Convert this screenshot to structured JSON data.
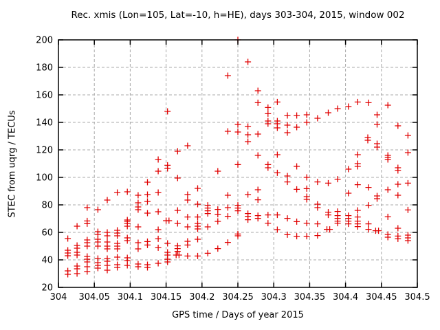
{
  "chart_data": {
    "type": "scatter",
    "title": "Rec. xmis (Lon=105, Lat=-10, h=HE), days 303-304, 2015, window 002",
    "xlabel": "GPS time / Days of year 2015",
    "ylabel": "STEC from uqrg / TECUs",
    "xlim": [
      304,
      304.5
    ],
    "ylim": [
      20,
      200
    ],
    "xticks": [
      {
        "v": 304.0,
        "label": "304"
      },
      {
        "v": 304.05,
        "label": "304.05"
      },
      {
        "v": 304.1,
        "label": "304.1"
      },
      {
        "v": 304.15,
        "label": "304.15"
      },
      {
        "v": 304.2,
        "label": "304.2"
      },
      {
        "v": 304.25,
        "label": "304.25"
      },
      {
        "v": 304.3,
        "label": "304.3"
      },
      {
        "v": 304.35,
        "label": "304.35"
      },
      {
        "v": 304.4,
        "label": "304.4"
      },
      {
        "v": 304.45,
        "label": "304.45"
      },
      {
        "v": 304.5,
        "label": "304.5"
      }
    ],
    "yticks": [
      {
        "v": 20,
        "label": "20"
      },
      {
        "v": 40,
        "label": "40"
      },
      {
        "v": 60,
        "label": "60"
      },
      {
        "v": 80,
        "label": "80"
      },
      {
        "v": 100,
        "label": "100"
      },
      {
        "v": 120,
        "label": "120"
      },
      {
        "v": 140,
        "label": "140"
      },
      {
        "v": 160,
        "label": "160"
      },
      {
        "v": 180,
        "label": "180"
      },
      {
        "v": 200,
        "label": "200"
      }
    ],
    "grid": true,
    "legend": "none",
    "marker": "plus",
    "marker_color": "#e00000",
    "grid_color": "#a8a8a8",
    "border_color": "#000000",
    "series": [
      {
        "name": "STEC from uqrg",
        "points": [
          [
            304.013,
            55.5
          ],
          [
            304.013,
            47
          ],
          [
            304.013,
            45
          ],
          [
            304.013,
            43
          ],
          [
            304.013,
            32
          ],
          [
            304.013,
            29.5
          ],
          [
            304.026,
            64.5
          ],
          [
            304.026,
            50.5
          ],
          [
            304.026,
            48.5
          ],
          [
            304.026,
            45.5
          ],
          [
            304.026,
            43.5
          ],
          [
            304.026,
            35.5
          ],
          [
            304.026,
            33.5
          ],
          [
            304.026,
            30
          ],
          [
            304.04,
            78
          ],
          [
            304.04,
            68.3
          ],
          [
            304.04,
            66.3
          ],
          [
            304.04,
            54.5
          ],
          [
            304.04,
            52.5
          ],
          [
            304.04,
            50
          ],
          [
            304.04,
            42.5
          ],
          [
            304.04,
            40.5
          ],
          [
            304.04,
            38.5
          ],
          [
            304.04,
            35
          ],
          [
            304.04,
            31.5
          ],
          [
            304.055,
            76.5
          ],
          [
            304.055,
            60.5
          ],
          [
            304.055,
            58.5
          ],
          [
            304.055,
            55
          ],
          [
            304.055,
            53
          ],
          [
            304.055,
            50
          ],
          [
            304.055,
            41
          ],
          [
            304.055,
            38
          ],
          [
            304.055,
            36
          ],
          [
            304.055,
            34
          ],
          [
            304.068,
            83.5
          ],
          [
            304.068,
            60
          ],
          [
            304.068,
            57.5
          ],
          [
            304.068,
            53
          ],
          [
            304.068,
            50
          ],
          [
            304.068,
            48
          ],
          [
            304.068,
            41
          ],
          [
            304.068,
            39
          ],
          [
            304.068,
            36
          ],
          [
            304.068,
            32.5
          ],
          [
            304.082,
            89
          ],
          [
            304.082,
            61.5
          ],
          [
            304.082,
            59.5
          ],
          [
            304.082,
            57.5
          ],
          [
            304.082,
            52
          ],
          [
            304.082,
            50
          ],
          [
            304.082,
            48
          ],
          [
            304.082,
            42
          ],
          [
            304.082,
            36.5
          ],
          [
            304.082,
            34.5
          ],
          [
            304.096,
            89.5
          ],
          [
            304.096,
            69
          ],
          [
            304.096,
            68
          ],
          [
            304.096,
            66.5
          ],
          [
            304.096,
            64.5
          ],
          [
            304.096,
            56
          ],
          [
            304.096,
            54
          ],
          [
            304.096,
            41.5
          ],
          [
            304.096,
            39.5
          ],
          [
            304.096,
            36
          ],
          [
            304.111,
            87
          ],
          [
            304.111,
            81.5
          ],
          [
            304.111,
            78.5
          ],
          [
            304.111,
            76.5
          ],
          [
            304.111,
            64
          ],
          [
            304.111,
            52.5
          ],
          [
            304.111,
            48
          ],
          [
            304.111,
            37
          ],
          [
            304.111,
            35
          ],
          [
            304.124,
            96.5
          ],
          [
            304.124,
            87.5
          ],
          [
            304.124,
            82.5
          ],
          [
            304.124,
            74
          ],
          [
            304.124,
            53.3
          ],
          [
            304.124,
            50.8
          ],
          [
            304.124,
            36.5
          ],
          [
            304.124,
            34.5
          ],
          [
            304.139,
            113
          ],
          [
            304.139,
            104.5
          ],
          [
            304.139,
            89
          ],
          [
            304.139,
            75
          ],
          [
            304.139,
            62
          ],
          [
            304.139,
            55.3
          ],
          [
            304.139,
            48.8
          ],
          [
            304.139,
            37.5
          ],
          [
            304.152,
            148
          ],
          [
            304.152,
            108.8
          ],
          [
            304.152,
            106.5
          ],
          [
            304.15,
            68.5
          ],
          [
            304.154,
            68.5
          ],
          [
            304.152,
            52
          ],
          [
            304.152,
            45.5
          ],
          [
            304.152,
            43.5
          ],
          [
            304.152,
            40.5
          ],
          [
            304.152,
            38.5
          ],
          [
            304.166,
            119
          ],
          [
            304.166,
            99.5
          ],
          [
            304.166,
            76
          ],
          [
            304.166,
            66.5
          ],
          [
            304.166,
            50.2
          ],
          [
            304.166,
            48.2
          ],
          [
            304.166,
            46.2
          ],
          [
            304.164,
            43.5
          ],
          [
            304.168,
            43.5
          ],
          [
            304.18,
            123
          ],
          [
            304.18,
            87.5
          ],
          [
            304.18,
            83.5
          ],
          [
            304.18,
            71.2
          ],
          [
            304.18,
            64
          ],
          [
            304.18,
            53.5
          ],
          [
            304.18,
            50.8
          ],
          [
            304.18,
            42.8
          ],
          [
            304.194,
            92
          ],
          [
            304.194,
            80.5
          ],
          [
            304.194,
            71.2
          ],
          [
            304.194,
            66.5
          ],
          [
            304.194,
            64.5
          ],
          [
            304.194,
            62.5
          ],
          [
            304.194,
            55
          ],
          [
            304.194,
            42.8
          ],
          [
            304.208,
            79.7
          ],
          [
            304.208,
            77.7
          ],
          [
            304.208,
            75.7
          ],
          [
            304.208,
            73.7
          ],
          [
            304.208,
            64
          ],
          [
            304.208,
            44.8
          ],
          [
            304.222,
            104.5
          ],
          [
            304.222,
            76.7
          ],
          [
            304.222,
            73.2
          ],
          [
            304.222,
            68
          ],
          [
            304.222,
            48.2
          ],
          [
            304.236,
            174
          ],
          [
            304.236,
            133.5
          ],
          [
            304.236,
            87
          ],
          [
            304.236,
            78
          ],
          [
            304.236,
            71.7
          ],
          [
            304.236,
            52.7
          ],
          [
            304.25,
            200
          ],
          [
            304.25,
            138.5
          ],
          [
            304.25,
            133
          ],
          [
            304.25,
            109.3
          ],
          [
            304.25,
            79.7
          ],
          [
            304.25,
            77.7
          ],
          [
            304.25,
            75.7
          ],
          [
            304.25,
            58.8
          ],
          [
            304.25,
            57.5
          ],
          [
            304.264,
            184
          ],
          [
            304.264,
            137
          ],
          [
            304.264,
            131
          ],
          [
            304.264,
            126
          ],
          [
            304.264,
            87.5
          ],
          [
            304.264,
            73.7
          ],
          [
            304.264,
            71.7
          ],
          [
            304.264,
            69.2
          ],
          [
            304.278,
            163
          ],
          [
            304.278,
            154.3
          ],
          [
            304.278,
            131.5
          ],
          [
            304.278,
            116
          ],
          [
            304.278,
            91
          ],
          [
            304.278,
            83.7
          ],
          [
            304.278,
            72.2
          ],
          [
            304.278,
            70.2
          ],
          [
            304.292,
            150.8
          ],
          [
            304.292,
            146.3
          ],
          [
            304.292,
            141
          ],
          [
            304.292,
            139
          ],
          [
            304.292,
            109.3
          ],
          [
            304.292,
            107
          ],
          [
            304.292,
            72.7
          ],
          [
            304.292,
            66.7
          ],
          [
            304.305,
            154.8
          ],
          [
            304.305,
            141
          ],
          [
            304.305,
            139
          ],
          [
            304.305,
            136
          ],
          [
            304.305,
            116.5
          ],
          [
            304.305,
            103.3
          ],
          [
            304.305,
            72.7
          ],
          [
            304.305,
            62
          ],
          [
            304.319,
            145
          ],
          [
            304.319,
            138
          ],
          [
            304.319,
            132.5
          ],
          [
            304.319,
            101
          ],
          [
            304.319,
            96.7
          ],
          [
            304.319,
            70.2
          ],
          [
            304.319,
            58.3
          ],
          [
            304.332,
            145
          ],
          [
            304.332,
            136.5
          ],
          [
            304.332,
            108
          ],
          [
            304.332,
            91.3
          ],
          [
            304.332,
            67.8
          ],
          [
            304.332,
            57.2
          ],
          [
            304.346,
            145.5
          ],
          [
            304.346,
            140
          ],
          [
            304.346,
            100
          ],
          [
            304.346,
            91.8
          ],
          [
            304.346,
            86
          ],
          [
            304.346,
            84
          ],
          [
            304.346,
            66.7
          ],
          [
            304.346,
            57.2
          ],
          [
            304.361,
            143
          ],
          [
            304.361,
            96.7
          ],
          [
            304.361,
            80.5
          ],
          [
            304.361,
            78
          ],
          [
            304.361,
            66.2
          ],
          [
            304.361,
            57.7
          ],
          [
            304.376,
            147
          ],
          [
            304.376,
            95.8
          ],
          [
            304.376,
            74.7
          ],
          [
            304.376,
            72.7
          ],
          [
            304.374,
            62.2
          ],
          [
            304.378,
            62.2
          ],
          [
            304.389,
            150
          ],
          [
            304.389,
            98.7
          ],
          [
            304.389,
            75.2
          ],
          [
            304.389,
            72.2
          ],
          [
            304.389,
            70.2
          ],
          [
            304.389,
            68.2
          ],
          [
            304.389,
            66.7
          ],
          [
            304.404,
            151.5
          ],
          [
            304.404,
            106
          ],
          [
            304.404,
            88.5
          ],
          [
            304.404,
            72.2
          ],
          [
            304.404,
            70.2
          ],
          [
            304.404,
            68.2
          ],
          [
            304.404,
            66.2
          ],
          [
            304.417,
            154.8
          ],
          [
            304.417,
            116.5
          ],
          [
            304.417,
            110
          ],
          [
            304.417,
            108
          ],
          [
            304.417,
            94.7
          ],
          [
            304.417,
            76
          ],
          [
            304.417,
            71.2
          ],
          [
            304.417,
            68.2
          ],
          [
            304.417,
            66.2
          ],
          [
            304.417,
            64.2
          ],
          [
            304.432,
            154.3
          ],
          [
            304.431,
            129
          ],
          [
            304.431,
            127
          ],
          [
            304.432,
            92.7
          ],
          [
            304.432,
            79.7
          ],
          [
            304.432,
            66.2
          ],
          [
            304.432,
            62.2
          ],
          [
            304.444,
            145.5
          ],
          [
            304.444,
            138.5
          ],
          [
            304.444,
            124.5
          ],
          [
            304.444,
            122
          ],
          [
            304.444,
            86.5
          ],
          [
            304.444,
            84.5
          ],
          [
            304.442,
            61.2
          ],
          [
            304.446,
            61.2
          ],
          [
            304.459,
            152.5
          ],
          [
            304.459,
            116
          ],
          [
            304.459,
            114.5
          ],
          [
            304.459,
            113
          ],
          [
            304.459,
            91
          ],
          [
            304.459,
            71.3
          ],
          [
            304.459,
            58.5
          ],
          [
            304.459,
            56.5
          ],
          [
            304.473,
            137.5
          ],
          [
            304.473,
            107
          ],
          [
            304.473,
            105
          ],
          [
            304.473,
            95
          ],
          [
            304.473,
            87
          ],
          [
            304.473,
            63
          ],
          [
            304.473,
            57.3
          ],
          [
            304.473,
            55.3
          ],
          [
            304.487,
            130.5
          ],
          [
            304.487,
            118
          ],
          [
            304.487,
            95.8
          ],
          [
            304.487,
            76.3
          ],
          [
            304.487,
            58
          ],
          [
            304.487,
            56
          ],
          [
            304.487,
            54
          ]
        ]
      }
    ]
  }
}
